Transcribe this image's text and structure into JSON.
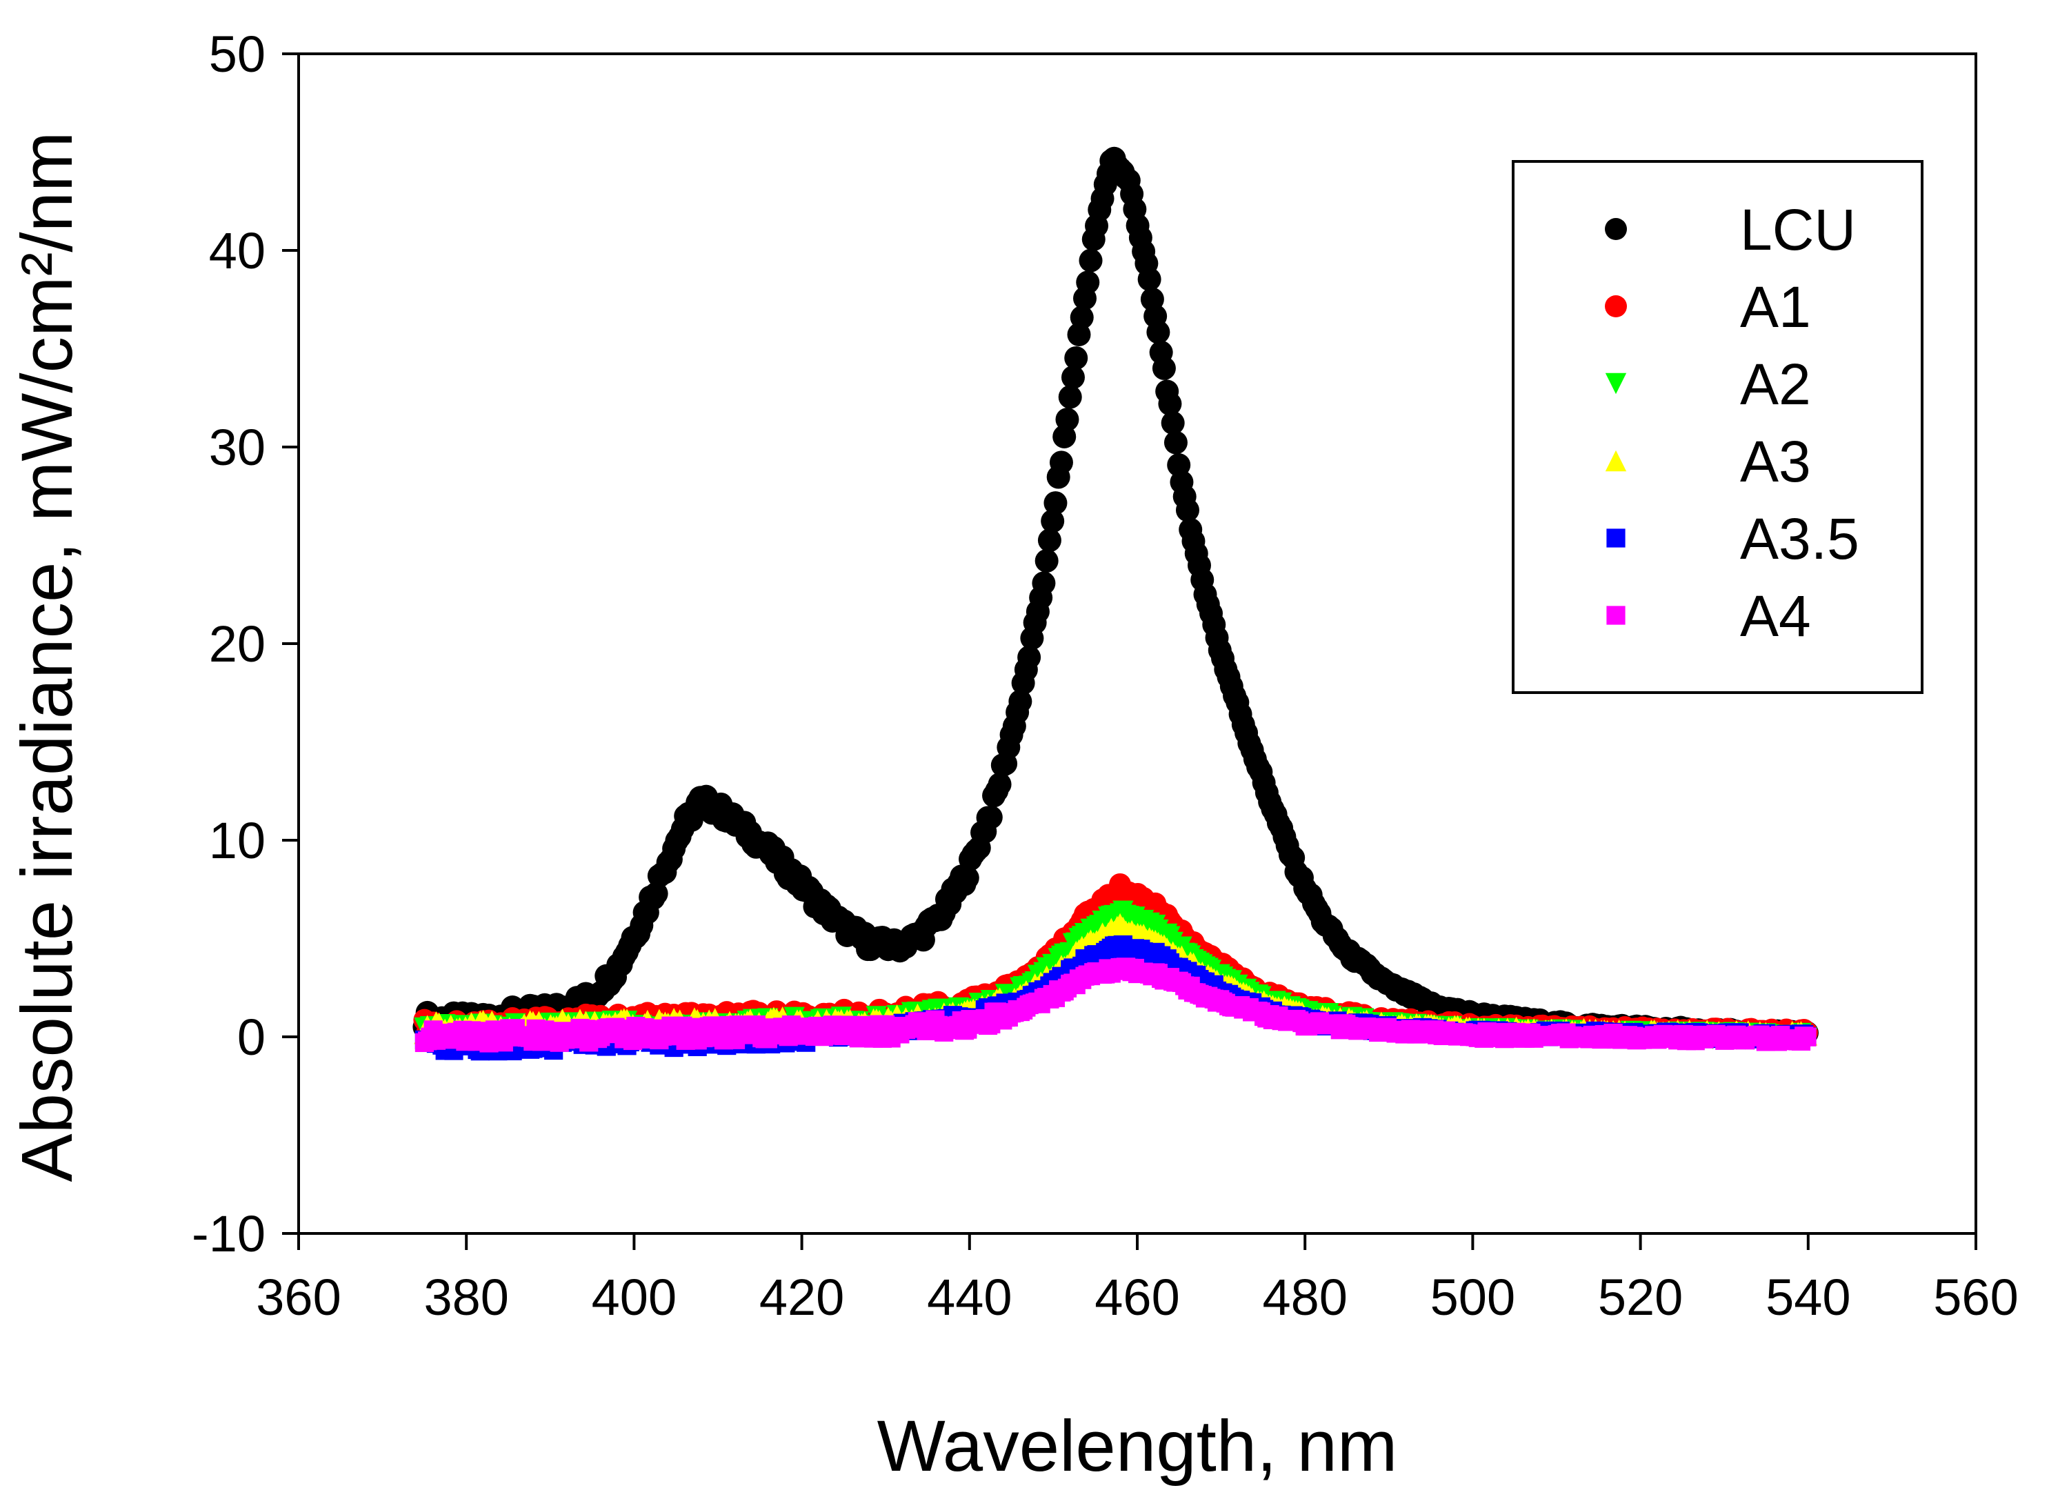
{
  "chart_data": {
    "type": "scatter",
    "title": "",
    "xlabel": "Wavelength, nm",
    "ylabel": "Absolute irradiance, mW/cm²/nm",
    "xlim": [
      360,
      560
    ],
    "ylim": [
      -10,
      50
    ],
    "xticks": [
      360,
      380,
      400,
      420,
      440,
      460,
      480,
      500,
      520,
      540,
      560
    ],
    "yticks": [
      -10,
      0,
      10,
      20,
      30,
      40,
      50
    ],
    "legend_position": "top-right",
    "grid": false,
    "series": [
      {
        "name": "LCU",
        "color": "#000000",
        "marker": "circle",
        "points": [
          [
            375,
            0.9
          ],
          [
            380,
            0.8
          ],
          [
            385,
            1.1
          ],
          [
            390,
            1.3
          ],
          [
            395,
            2.0
          ],
          [
            398,
            3.5
          ],
          [
            401,
            6.0
          ],
          [
            404,
            9.0
          ],
          [
            406,
            10.8
          ],
          [
            408,
            12.0
          ],
          [
            410,
            11.6
          ],
          [
            413,
            10.6
          ],
          [
            416,
            9.5
          ],
          [
            419,
            8.2
          ],
          [
            422,
            6.8
          ],
          [
            425,
            5.6
          ],
          [
            428,
            4.8
          ],
          [
            431,
            4.6
          ],
          [
            434,
            5.1
          ],
          [
            437,
            6.4
          ],
          [
            440,
            8.6
          ],
          [
            443,
            12.0
          ],
          [
            446,
            17.0
          ],
          [
            449,
            23.5
          ],
          [
            451,
            29.5
          ],
          [
            453,
            35.5
          ],
          [
            455,
            41.0
          ],
          [
            457,
            44.8
          ],
          [
            459,
            43.5
          ],
          [
            461,
            39.5
          ],
          [
            463,
            34.5
          ],
          [
            465,
            29.0
          ],
          [
            467,
            24.5
          ],
          [
            470,
            19.5
          ],
          [
            473,
            15.5
          ],
          [
            476,
            11.8
          ],
          [
            479,
            8.5
          ],
          [
            482,
            6.0
          ],
          [
            485,
            4.3
          ],
          [
            490,
            2.6
          ],
          [
            495,
            1.6
          ],
          [
            500,
            1.1
          ],
          [
            510,
            0.6
          ],
          [
            520,
            0.4
          ],
          [
            530,
            0.2
          ],
          [
            540,
            0.1
          ]
        ]
      },
      {
        "name": "A1",
        "color": "#ff0000",
        "marker": "circle",
        "points": [
          [
            375,
            0.5
          ],
          [
            390,
            0.7
          ],
          [
            410,
            0.9
          ],
          [
            430,
            1.0
          ],
          [
            440,
            1.6
          ],
          [
            445,
            2.4
          ],
          [
            450,
            4.2
          ],
          [
            454,
            6.2
          ],
          [
            458,
            7.6
          ],
          [
            462,
            6.7
          ],
          [
            466,
            5.0
          ],
          [
            470,
            3.6
          ],
          [
            475,
            2.2
          ],
          [
            480,
            1.5
          ],
          [
            490,
            0.8
          ],
          [
            500,
            0.5
          ],
          [
            520,
            0.3
          ],
          [
            540,
            0.2
          ]
        ]
      },
      {
        "name": "A2",
        "color": "#00ff00",
        "marker": "triangle-down",
        "points": [
          [
            375,
            0.2
          ],
          [
            390,
            0.4
          ],
          [
            410,
            0.5
          ],
          [
            430,
            0.7
          ],
          [
            440,
            1.2
          ],
          [
            445,
            2.0
          ],
          [
            450,
            3.6
          ],
          [
            454,
            5.3
          ],
          [
            458,
            6.3
          ],
          [
            462,
            5.6
          ],
          [
            466,
            4.2
          ],
          [
            470,
            3.0
          ],
          [
            475,
            1.9
          ],
          [
            480,
            1.2
          ],
          [
            490,
            0.6
          ],
          [
            500,
            0.3
          ],
          [
            520,
            0.1
          ],
          [
            540,
            0.0
          ]
        ]
      },
      {
        "name": "A3",
        "color": "#ffff00",
        "marker": "triangle-up",
        "points": [
          [
            375,
            0.4
          ],
          [
            390,
            0.5
          ],
          [
            410,
            0.6
          ],
          [
            430,
            0.7
          ],
          [
            440,
            1.1
          ],
          [
            445,
            1.8
          ],
          [
            450,
            3.2
          ],
          [
            454,
            4.7
          ],
          [
            458,
            5.6
          ],
          [
            462,
            5.0
          ],
          [
            466,
            3.8
          ],
          [
            470,
            2.7
          ],
          [
            475,
            1.7
          ],
          [
            480,
            1.1
          ],
          [
            490,
            0.6
          ],
          [
            500,
            0.4
          ],
          [
            520,
            0.2
          ],
          [
            540,
            0.1
          ]
        ]
      },
      {
        "name": "A3.5",
        "color": "#0000ff",
        "marker": "square",
        "points": [
          [
            375,
            -0.4
          ],
          [
            390,
            -0.3
          ],
          [
            410,
            -0.1
          ],
          [
            430,
            0.3
          ],
          [
            440,
            0.8
          ],
          [
            445,
            1.5
          ],
          [
            450,
            2.7
          ],
          [
            454,
            3.9
          ],
          [
            458,
            4.6
          ],
          [
            462,
            4.2
          ],
          [
            466,
            3.2
          ],
          [
            470,
            2.3
          ],
          [
            475,
            1.4
          ],
          [
            480,
            0.8
          ],
          [
            490,
            0.4
          ],
          [
            500,
            0.2
          ],
          [
            520,
            0.1
          ],
          [
            540,
            0.0
          ]
        ]
      },
      {
        "name": "A4",
        "color": "#ff00ff",
        "marker": "square",
        "points": [
          [
            375,
            0.0
          ],
          [
            390,
            0.1
          ],
          [
            410,
            0.2
          ],
          [
            430,
            0.3
          ],
          [
            440,
            0.6
          ],
          [
            445,
            1.2
          ],
          [
            450,
            2.1
          ],
          [
            454,
            3.0
          ],
          [
            458,
            3.5
          ],
          [
            462,
            3.2
          ],
          [
            466,
            2.5
          ],
          [
            470,
            1.8
          ],
          [
            475,
            1.1
          ],
          [
            480,
            0.7
          ],
          [
            490,
            0.3
          ],
          [
            500,
            0.1
          ],
          [
            520,
            0.0
          ],
          [
            540,
            -0.1
          ]
        ]
      }
    ]
  }
}
